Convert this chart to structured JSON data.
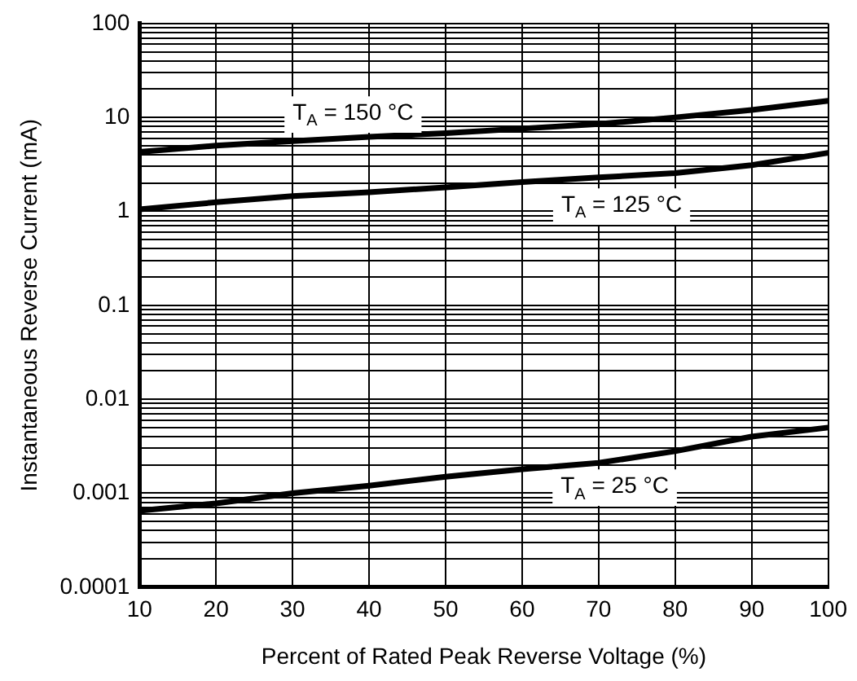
{
  "chart_data": {
    "type": "line",
    "xlabel": "Percent of Rated Peak Reverse Voltage (%)",
    "ylabel": "Instantaneous Reverse Current (mA)",
    "x": [
      10,
      20,
      30,
      40,
      50,
      60,
      70,
      80,
      90,
      100
    ],
    "series": [
      {
        "name": "T$_{A}$ = 150 °C",
        "color": "#000000",
        "values": [
          4.3,
          5,
          5.6,
          6.2,
          6.8,
          7.6,
          8.5,
          10,
          12,
          15
        ]
      },
      {
        "name": "T$_{A}$ = 125 °C",
        "color": "#000000",
        "values": [
          1.05,
          1.25,
          1.45,
          1.6,
          1.8,
          2.05,
          2.3,
          2.55,
          3.1,
          4.2
        ]
      },
      {
        "name": "T$_{A}$ = 25 °C",
        "color": "#000000",
        "values": [
          0.00065,
          0.00078,
          0.001,
          0.0012,
          0.0015,
          0.0018,
          0.0021,
          0.0028,
          0.004,
          0.005
        ]
      }
    ],
    "log": "y",
    "xlim": [
      10,
      100
    ],
    "xticks": [
      10,
      20,
      30,
      40,
      50,
      60,
      70,
      80,
      90,
      100
    ],
    "ylim": [
      0.0001,
      100
    ],
    "yticks": [
      0.0001,
      {
        "value": 0.0002,
        "label": null
      },
      {
        "value": 0.0003,
        "label": null
      },
      {
        "value": 0.0004,
        "label": null
      },
      {
        "value": 0.0005,
        "label": null
      },
      {
        "value": 0.0006,
        "label": null
      },
      {
        "value": 0.0007,
        "label": null
      },
      {
        "value": 0.0008,
        "label": null
      },
      {
        "value": 0.0009,
        "label": null
      },
      0.001,
      {
        "value": 0.002,
        "label": null
      },
      {
        "value": 0.003,
        "label": null
      },
      {
        "value": 0.004,
        "label": null
      },
      {
        "value": 0.005,
        "label": null
      },
      {
        "value": 0.006,
        "label": null
      },
      {
        "value": 0.007,
        "label": null
      },
      {
        "value": 0.008,
        "label": null
      },
      {
        "value": 0.009,
        "label": null
      },
      0.01,
      {
        "value": 0.02,
        "label": null
      },
      {
        "value": 0.03,
        "label": null
      },
      {
        "value": 0.04,
        "label": null
      },
      {
        "value": 0.05,
        "label": null
      },
      {
        "value": 0.06,
        "label": null
      },
      {
        "value": 0.07,
        "label": null
      },
      {
        "value": 0.08,
        "label": null
      },
      {
        "value": 0.09,
        "label": null
      },
      0.1,
      {
        "value": 0.2,
        "label": null
      },
      {
        "value": 0.3,
        "label": null
      },
      {
        "value": 0.4,
        "label": null
      },
      {
        "value": 0.5,
        "label": null
      },
      {
        "value": 0.6,
        "label": null
      },
      {
        "value": 0.7,
        "label": null
      },
      {
        "value": 0.8,
        "label": null
      },
      {
        "value": 0.9,
        "label": null
      },
      1,
      {
        "value": 2,
        "label": null
      },
      {
        "value": 3,
        "label": null
      },
      {
        "value": 4,
        "label": null
      },
      {
        "value": 5,
        "label": null
      },
      {
        "value": 6,
        "label": null
      },
      {
        "value": 7,
        "label": null
      },
      {
        "value": 8,
        "label": null
      },
      {
        "value": 9,
        "label": null
      },
      10,
      {
        "value": 20,
        "label": null
      },
      {
        "value": 30,
        "label": null
      },
      {
        "value": 40,
        "label": null
      },
      {
        "value": 50,
        "label": null
      },
      {
        "value": 60,
        "label": null
      },
      {
        "value": 70,
        "label": null
      },
      {
        "value": 80,
        "label": null
      },
      {
        "value": 90,
        "label": null
      },
      100
    ],
    "grid": true,
    "legend": false,
    "marker": "none",
    "line_style": "solid"
  }
}
